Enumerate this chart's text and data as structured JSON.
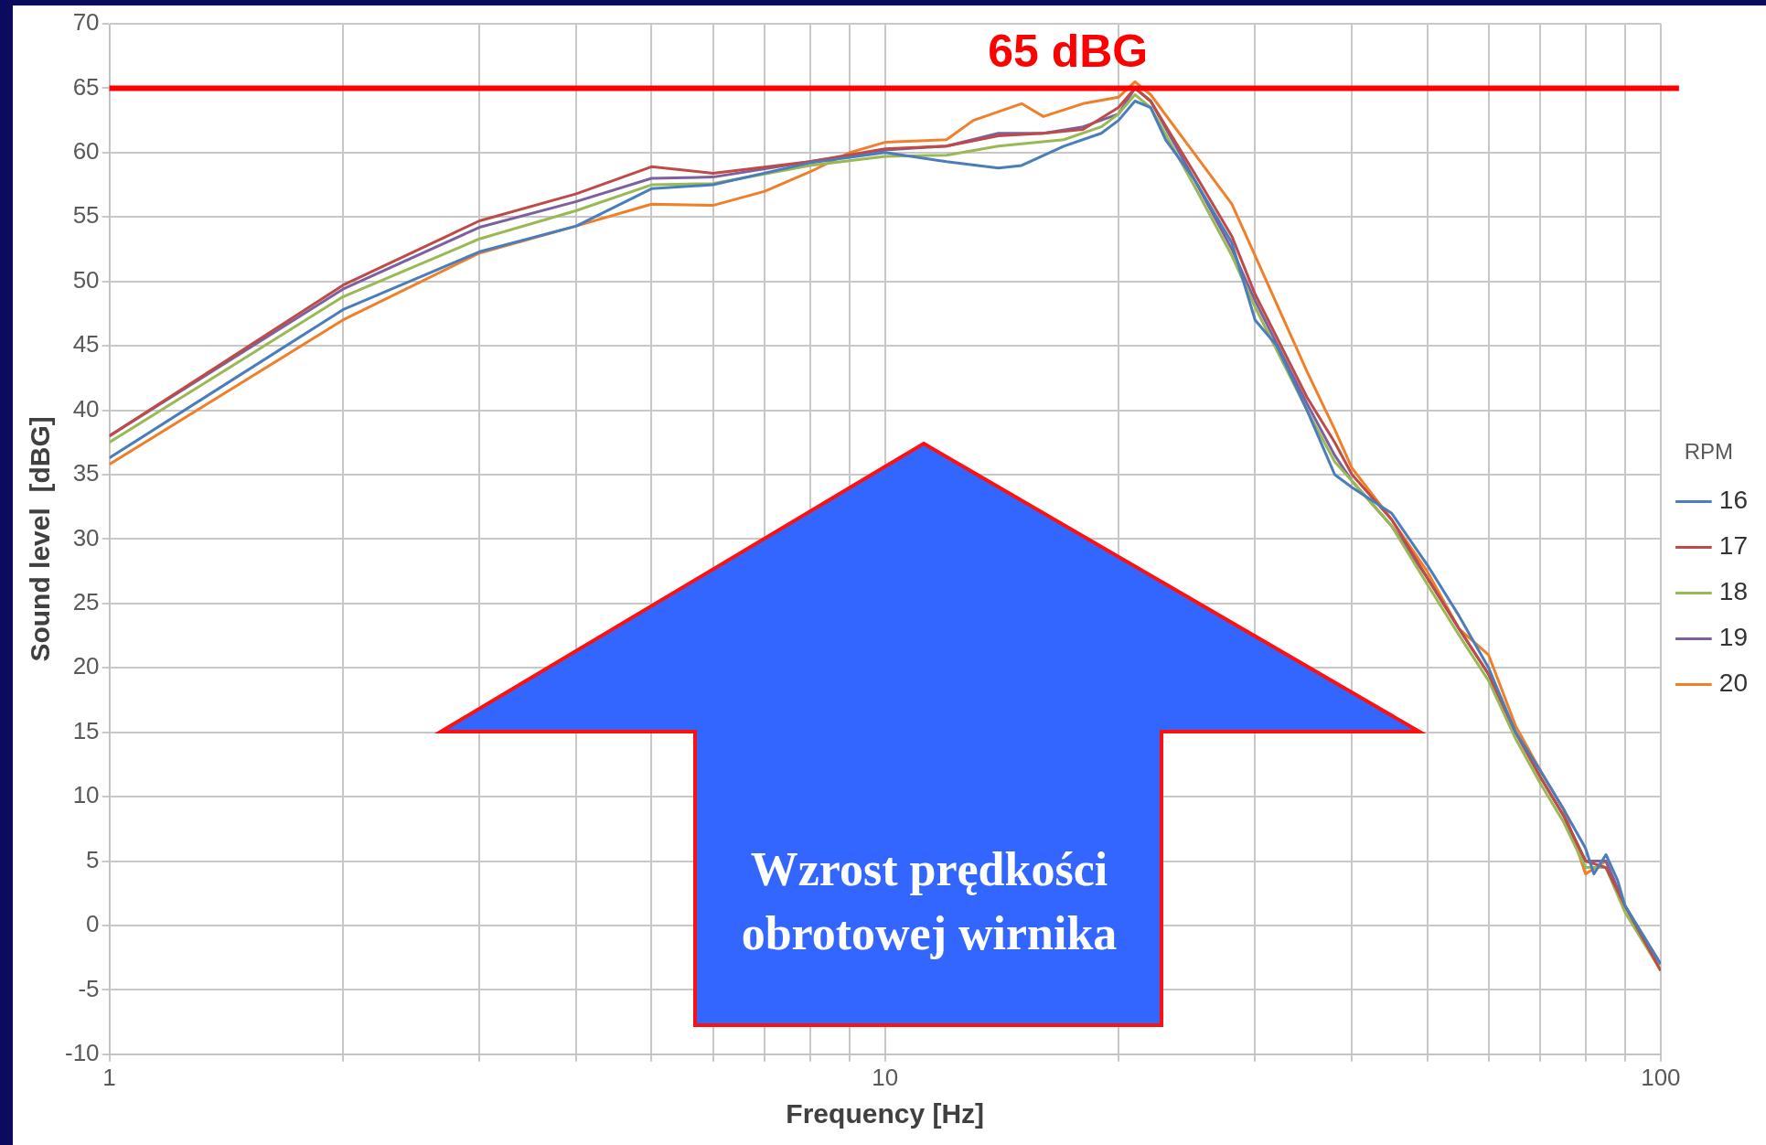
{
  "chart_data": {
    "type": "line",
    "xlabel": "Frequency [Hz]",
    "ylabel": "Sound level  [dBG]",
    "legend_title": "RPM",
    "log": "x",
    "xlim": [
      1,
      100
    ],
    "ylim": [
      -10,
      70
    ],
    "xticks": [
      1,
      {
        "value": 2,
        "label": null
      },
      {
        "value": 3,
        "label": null
      },
      {
        "value": 4,
        "label": null
      },
      {
        "value": 5,
        "label": null
      },
      {
        "value": 6,
        "label": null
      },
      {
        "value": 7,
        "label": null
      },
      {
        "value": 8,
        "label": null
      },
      {
        "value": 9,
        "label": null
      },
      10,
      {
        "value": 20,
        "label": null
      },
      {
        "value": 30,
        "label": null
      },
      {
        "value": 40,
        "label": null
      },
      {
        "value": 50,
        "label": null
      },
      {
        "value": 60,
        "label": null
      },
      {
        "value": 70,
        "label": null
      },
      {
        "value": 80,
        "label": null
      },
      {
        "value": 90,
        "label": null
      },
      100
    ],
    "yticks": [
      -10,
      -5,
      0,
      5,
      10,
      15,
      20,
      25,
      30,
      35,
      40,
      45,
      50,
      55,
      60,
      65,
      70
    ],
    "grid": true,
    "legend": "right",
    "marker": "none",
    "line_style": "solid",
    "ref_lines": [
      {
        "axis": "y",
        "value": 65,
        "label": "65 dBG",
        "color": "#ff0000"
      }
    ],
    "annotations": [
      "Wzrost prędkości obrotowej wirnika"
    ],
    "series": [
      {
        "name": "16",
        "color": "#4a7ebb",
        "x": [
          1,
          2,
          3,
          4,
          5,
          6,
          8,
          10,
          12,
          14,
          15,
          17,
          19,
          20,
          21,
          22,
          23,
          25,
          28,
          30,
          32,
          35,
          38,
          40,
          45,
          50,
          55,
          60,
          65,
          70,
          75,
          80,
          82,
          85,
          88,
          90,
          100
        ],
        "values": [
          36.3,
          47.8,
          52.3,
          54.3,
          57.2,
          57.5,
          59.2,
          60,
          59.3,
          58.8,
          59,
          60.5,
          61.5,
          62.5,
          64,
          63.5,
          61,
          58,
          53,
          47,
          45,
          40,
          35,
          34,
          32,
          28,
          24,
          20,
          15,
          12,
          9,
          6,
          4,
          5.5,
          3.5,
          1.5,
          -3
        ]
      },
      {
        "name": "17",
        "color": "#be4b48",
        "x": [
          1,
          2,
          3,
          4,
          5,
          6,
          8,
          10,
          12,
          14,
          16,
          18,
          20,
          21,
          22,
          25,
          28,
          30,
          35,
          38,
          40,
          45,
          50,
          55,
          60,
          65,
          70,
          75,
          80,
          85,
          90,
          100
        ],
        "values": [
          38,
          49.7,
          54.7,
          56.8,
          58.9,
          58.4,
          59.3,
          60.3,
          60.5,
          61.3,
          61.5,
          61.8,
          63.5,
          65,
          64,
          58.5,
          53.5,
          49,
          41,
          37.5,
          35,
          31.5,
          27,
          23,
          19.5,
          15,
          11.5,
          8.5,
          5,
          4.5,
          1.5,
          -3.5
        ]
      },
      {
        "name": "18",
        "color": "#98b954",
        "x": [
          1,
          2,
          3,
          4,
          5,
          6,
          8,
          10,
          12,
          14,
          17,
          19,
          20,
          21,
          22,
          25,
          28,
          30,
          35,
          38,
          40,
          45,
          50,
          55,
          60,
          65,
          70,
          75,
          80,
          85,
          90,
          100
        ],
        "values": [
          37.5,
          48.8,
          53.3,
          55.5,
          57.5,
          57.6,
          59,
          59.7,
          59.8,
          60.5,
          61,
          62,
          63,
          64.5,
          63.5,
          57.5,
          52,
          48,
          40,
          36,
          34.5,
          31,
          26.5,
          22.5,
          19,
          14.5,
          11,
          8,
          4.5,
          4.5,
          1,
          -3.5
        ]
      },
      {
        "name": "19",
        "color": "#7d60a0",
        "x": [
          1,
          2,
          3,
          4,
          5,
          6,
          8,
          10,
          12,
          14,
          16,
          18,
          20,
          21,
          22,
          25,
          28,
          30,
          35,
          38,
          40,
          45,
          50,
          55,
          60,
          65,
          70,
          75,
          80,
          85,
          90,
          100
        ],
        "values": [
          38,
          49.4,
          54.2,
          56.2,
          58,
          58.1,
          59.3,
          60.2,
          60.5,
          61.5,
          61.5,
          62,
          63,
          65,
          64,
          58,
          52.5,
          48.5,
          40.5,
          36.5,
          34.5,
          31,
          27,
          23,
          19.5,
          15,
          11.5,
          8.5,
          5,
          5,
          1.5,
          -3
        ]
      },
      {
        "name": "20",
        "color": "#f07f2a",
        "x": [
          1,
          2,
          3,
          4,
          5,
          6,
          7,
          8,
          9,
          10,
          12,
          13,
          15,
          16,
          18,
          20,
          21,
          22,
          25,
          28,
          30,
          35,
          38,
          40,
          45,
          50,
          55,
          60,
          65,
          70,
          75,
          80,
          85,
          90,
          100
        ],
        "values": [
          35.8,
          47,
          52.2,
          54.3,
          56,
          55.9,
          57,
          58.5,
          60,
          60.8,
          61,
          62.5,
          63.8,
          62.8,
          63.8,
          64.3,
          65.5,
          64.5,
          60,
          56,
          52,
          43,
          38.5,
          35.5,
          31.5,
          27.5,
          23,
          21,
          15.5,
          12,
          9,
          4,
          5,
          1.5,
          -3.5
        ]
      }
    ]
  }
}
